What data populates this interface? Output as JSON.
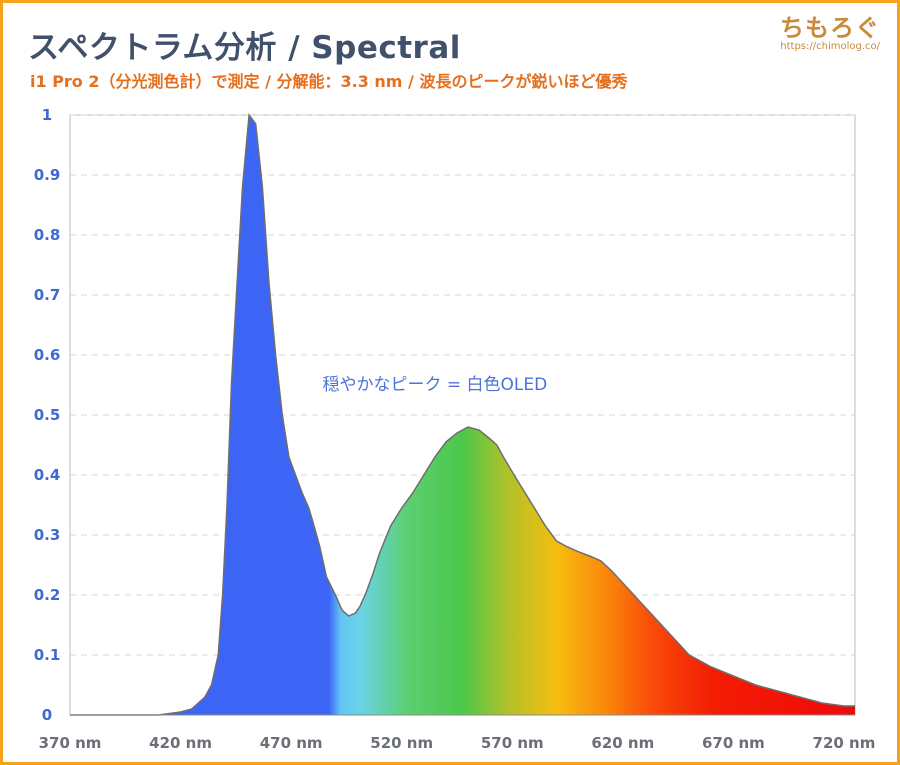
{
  "header": {
    "title": "スペクトラム分析 / Spectral",
    "subtitle": "i1 Pro 2（分光測色計）で測定 / 分解能：3.3 nm / 波長のピークが鋭いほど優秀"
  },
  "brand": {
    "name": "ちもろぐ",
    "url": "https://chimolog.co/"
  },
  "colors": {
    "frame": "#f6a21d",
    "title": "#41506b",
    "subtitle": "#e56f1c",
    "y_tick": "#3f68d6",
    "annotation": "#4b73d9",
    "curve_outline": "#6e6e6e"
  },
  "chart_data": {
    "type": "area",
    "title": "",
    "xlabel": "",
    "ylabel": "",
    "xlim": [
      370,
      725
    ],
    "ylim": [
      0,
      1
    ],
    "grid": true,
    "x_ticks": [
      "370 nm",
      "420 nm",
      "470 nm",
      "520 nm",
      "570 nm",
      "620 nm",
      "670 nm",
      "720 nm"
    ],
    "y_ticks": [
      "0",
      "0.1",
      "0.2",
      "0.3",
      "0.4",
      "0.5",
      "0.6",
      "0.7",
      "0.8",
      "0.9",
      "1"
    ],
    "annotation": "穏やかなピーク = 白色OLED",
    "annotation_at": {
      "x": 535,
      "y": 0.55
    },
    "fill": "wavelength-colored spectrum",
    "series": [
      {
        "x": [
          370,
          380,
          390,
          400,
          410,
          420,
          425,
          428,
          431,
          434,
          437,
          439,
          441,
          443,
          446,
          448,
          451,
          454,
          457,
          460,
          463,
          466,
          469,
          472,
          475,
          478,
          480,
          483,
          486,
          490,
          493,
          496,
          499,
          501,
          504,
          507,
          510,
          515,
          520,
          525,
          530,
          535,
          540,
          545,
          550,
          555,
          560,
          563,
          566,
          570,
          575,
          580,
          585,
          590,
          595,
          600,
          605,
          610,
          615,
          620,
          625,
          630,
          635,
          640,
          645,
          650,
          660,
          670,
          680,
          690,
          700,
          710,
          720,
          725
        ],
        "y": [
          0,
          0,
          0,
          0,
          0,
          0.005,
          0.01,
          0.02,
          0.03,
          0.05,
          0.1,
          0.2,
          0.35,
          0.55,
          0.75,
          0.88,
          1.0,
          0.985,
          0.88,
          0.72,
          0.6,
          0.5,
          0.43,
          0.4,
          0.37,
          0.345,
          0.32,
          0.28,
          0.23,
          0.2,
          0.175,
          0.165,
          0.17,
          0.18,
          0.205,
          0.235,
          0.27,
          0.315,
          0.345,
          0.37,
          0.4,
          0.43,
          0.455,
          0.47,
          0.48,
          0.475,
          0.46,
          0.45,
          0.43,
          0.405,
          0.375,
          0.345,
          0.315,
          0.29,
          0.28,
          0.272,
          0.265,
          0.257,
          0.24,
          0.22,
          0.2,
          0.18,
          0.16,
          0.14,
          0.12,
          0.1,
          0.08,
          0.065,
          0.05,
          0.04,
          0.03,
          0.02,
          0.015,
          0.015
        ]
      }
    ]
  }
}
